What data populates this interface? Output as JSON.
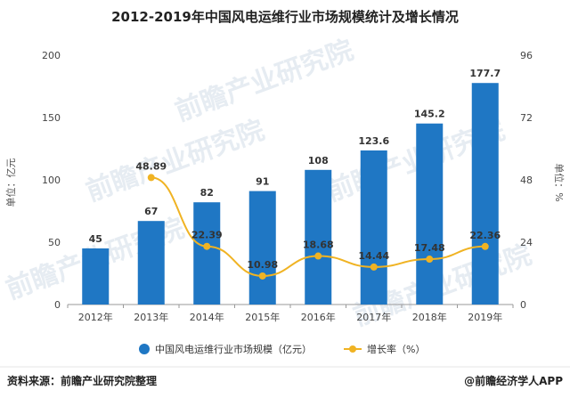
{
  "chart_data": {
    "type": "bar",
    "title": "2012-2019年中国风电运维行业市场规模统计及增长情况",
    "categories": [
      "2012年",
      "2013年",
      "2014年",
      "2015年",
      "2016年",
      "2017年",
      "2018年",
      "2019年"
    ],
    "series": [
      {
        "name": "中国风电运维行业市场规模（亿元）",
        "type": "bar",
        "axis": "left",
        "color": "#1f77c4",
        "values": [
          45,
          67,
          82,
          91,
          108,
          123.6,
          145.2,
          177.7
        ],
        "labels": [
          "45",
          "67",
          "82",
          "91",
          "108",
          "123.6",
          "145.2",
          "177.7"
        ]
      },
      {
        "name": "增长率（%）",
        "type": "line",
        "axis": "right",
        "color": "#f0b323",
        "values": [
          null,
          48.89,
          22.39,
          10.98,
          18.68,
          14.44,
          17.48,
          22.36
        ],
        "labels": [
          "",
          "48.89",
          "22.39",
          "10.98",
          "18.68",
          "14.44",
          "17.48",
          "22.36"
        ]
      }
    ],
    "ylabel": "单位：亿元",
    "y2label": "单位：%",
    "ylim": [
      0,
      200
    ],
    "y2lim": [
      0,
      96
    ],
    "yticks": [
      "0",
      "50",
      "100",
      "150",
      "200"
    ],
    "y2ticks": [
      "0",
      "24",
      "48",
      "72",
      "96"
    ],
    "grid": false,
    "legend": "bottom"
  },
  "footer": {
    "source": "资料来源：前瞻产业研究院整理",
    "brand": "@前瞻经济学人APP"
  },
  "watermark": {
    "text": "前瞻产业研究院"
  },
  "colors": {
    "bar": "#1f77c4",
    "line": "#f0b323"
  }
}
